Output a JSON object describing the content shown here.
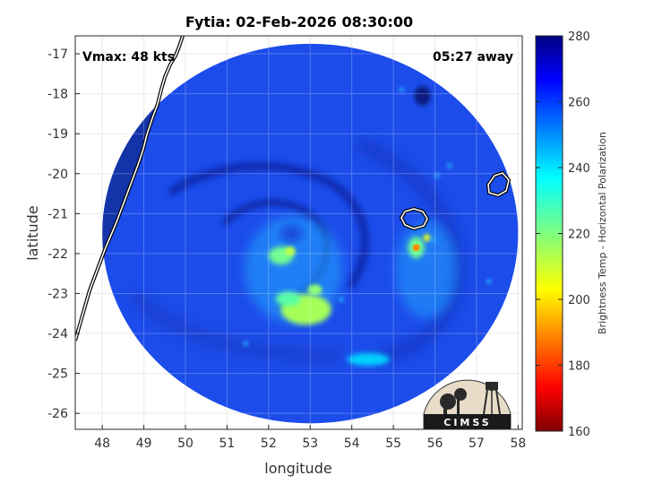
{
  "chart_data": {
    "type": "heatmap",
    "title": "Fytia: 02-Feb-2026 08:30:00",
    "xlabel": "longitude",
    "ylabel": "latitude",
    "xlim": [
      47.35,
      58.1
    ],
    "ylim": [
      -26.4,
      -16.55
    ],
    "x_ticks": [
      "48",
      "49",
      "50",
      "51",
      "52",
      "53",
      "54",
      "55",
      "56",
      "57",
      "58"
    ],
    "y_ticks": [
      "-17",
      "-18",
      "-19",
      "-20",
      "-21",
      "-22",
      "-23",
      "-24",
      "-25",
      "-26"
    ],
    "grid": true,
    "annotations": {
      "vmax": "Vmax: 48 kts",
      "time_away": "05:27 away"
    },
    "colorbar": {
      "label": "Brightness Temp - Horizontal Polarization",
      "range": [
        160,
        280
      ],
      "ticks": [
        "280",
        "260",
        "240",
        "220",
        "200",
        "180",
        "160"
      ],
      "colormap": "jet"
    },
    "swath": {
      "center": [
        53.0,
        -21.5
      ],
      "radius_deg_lon": 5.0,
      "radius_deg_lat": 4.75
    },
    "features": [
      {
        "name": "spiral-band-core",
        "lon": 52.3,
        "lat": -22.05,
        "value": 222
      },
      {
        "name": "southern-band",
        "lon": 52.9,
        "lat": -23.4,
        "value": 215
      },
      {
        "name": "eastern-hotspot",
        "lon": 55.55,
        "lat": -21.85,
        "value": 190
      },
      {
        "name": "southern-rainband",
        "lon": 54.4,
        "lat": -24.65,
        "value": 242
      }
    ]
  },
  "logo": {
    "text": "CIMSS"
  }
}
